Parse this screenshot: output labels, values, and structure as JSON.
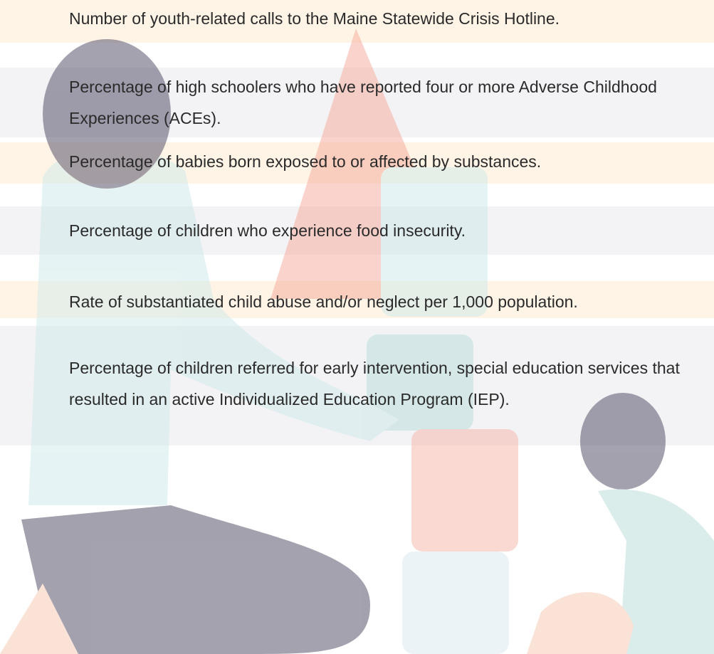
{
  "items": [
    "Number of youth-related calls to the Maine Statewide Crisis Hotline.",
    "Percentage of high schoolers who have reported four or more Adverse Childhood Experiences (ACEs).",
    "Percentage of babies born exposed to or affected by substances.",
    "Percentage of children who experience food insecurity.",
    "Rate of substantiated child abuse and/or neglect per 1,000 population.",
    "Percentage of children referred for early intervention, special education services that resulted in an active Individualized Education Program (IEP)."
  ]
}
